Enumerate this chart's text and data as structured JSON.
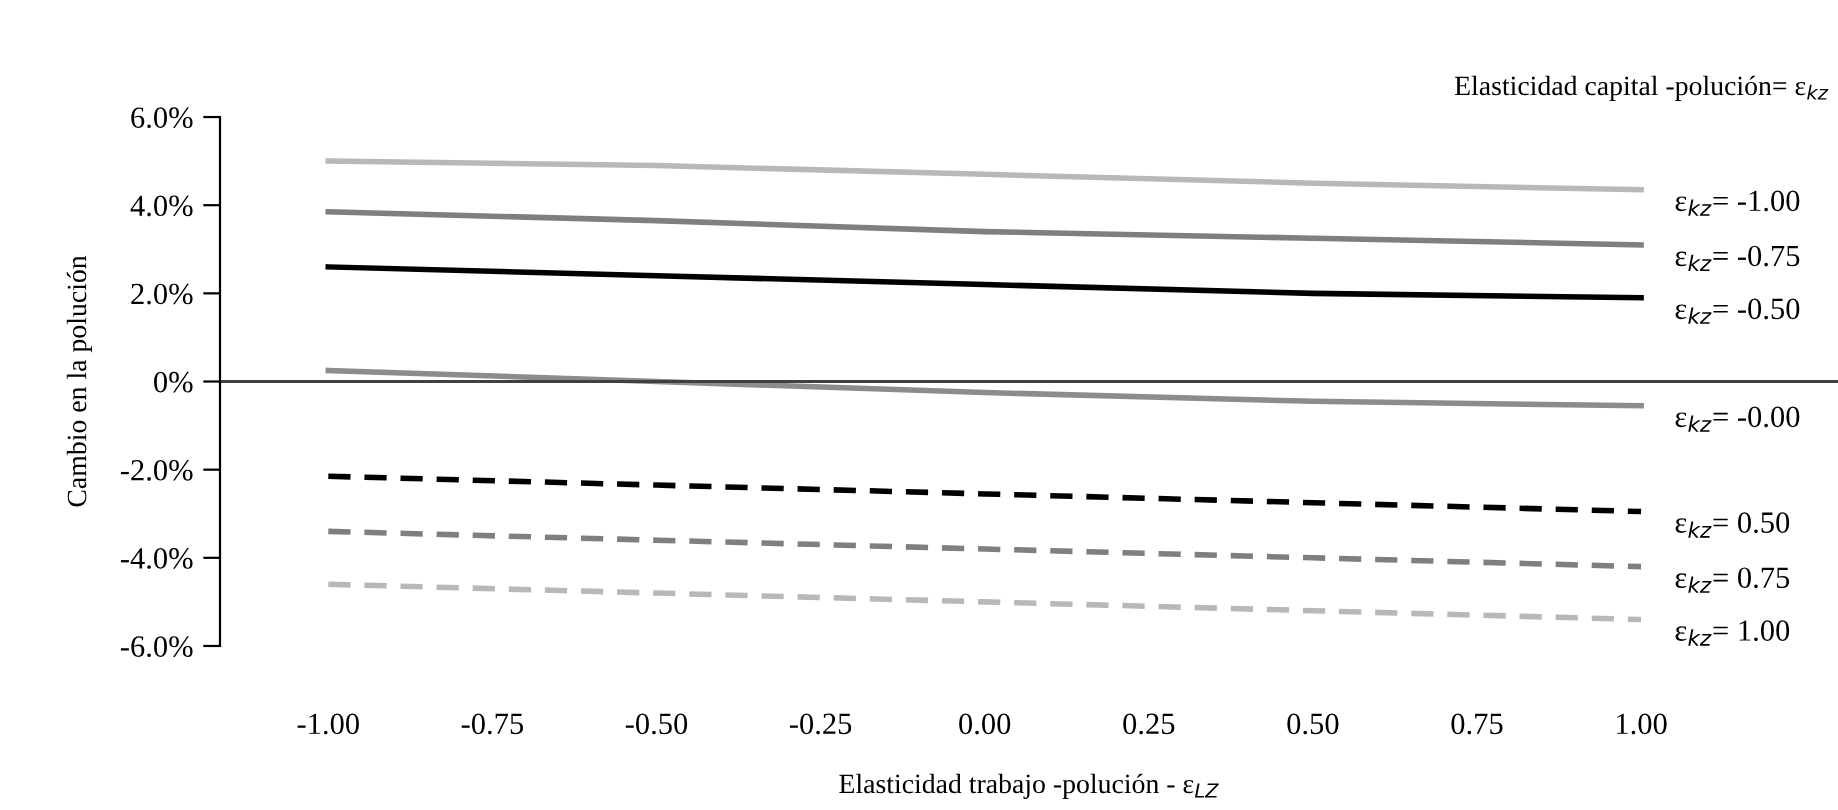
{
  "chart_data": {
    "type": "line",
    "xlabel": "Elasticidad trabajo -polución - ε$_{LZ}$",
    "ylabel": "Cambio en la polución",
    "annotations": [
      "Elasticidad capital -polución= ε$_{kz}$"
    ],
    "x": [
      -1.0,
      -0.5,
      0.0,
      0.5,
      1.0
    ],
    "xlim": [
      -1.165,
      1.3
    ],
    "xticks": [
      {
        "value": -1.0,
        "label": "-1.00"
      },
      {
        "value": -0.75,
        "label": "-0.75"
      },
      {
        "value": -0.5,
        "label": "-0.50"
      },
      {
        "value": -0.25,
        "label": "-0.25"
      },
      {
        "value": 0.0,
        "label": "0.00"
      },
      {
        "value": 0.25,
        "label": "0.25"
      },
      {
        "value": 0.5,
        "label": "0.50"
      },
      {
        "value": 0.75,
        "label": "0.75"
      },
      {
        "value": 1.0,
        "label": "1.00"
      }
    ],
    "ylim": [
      -6,
      6
    ],
    "yticks": [
      {
        "value": 6,
        "label": "6.0%"
      },
      {
        "value": 4,
        "label": "4.0%"
      },
      {
        "value": 2,
        "label": "2.0%"
      },
      {
        "value": 0,
        "label": "0%"
      },
      {
        "value": -2,
        "label": "-2.0%"
      },
      {
        "value": -4,
        "label": "-4.0%"
      },
      {
        "value": -6,
        "label": "-6.0%"
      }
    ],
    "ref_lines": [
      {
        "axis": "y",
        "value": 0,
        "color": "#404040"
      }
    ],
    "grid": false,
    "legend": false,
    "marker": "none",
    "series": [
      {
        "name": "ε$_{kz}$= -1.00",
        "color": "#b8b8b8",
        "line_style": "solid",
        "values": [
          5.0,
          4.9,
          4.7,
          4.5,
          4.35
        ]
      },
      {
        "name": "ε$_{kz}$= -0.75",
        "color": "#7f7f7f",
        "line_style": "solid",
        "values": [
          3.85,
          3.65,
          3.4,
          3.25,
          3.1
        ]
      },
      {
        "name": "ε$_{kz}$= -0.50",
        "color": "#000000",
        "line_style": "solid",
        "values": [
          2.6,
          2.4,
          2.2,
          2.0,
          1.9
        ]
      },
      {
        "name": "ε$_{kz}$= -0.00",
        "color": "#8c8c8c",
        "line_style": "solid",
        "values": [
          0.25,
          0.0,
          -0.25,
          -0.45,
          -0.55
        ]
      },
      {
        "name": "ε$_{kz}$= 0.50",
        "color": "#000000",
        "line_style": "dashed",
        "values": [
          -2.15,
          -2.35,
          -2.55,
          -2.75,
          -2.95
        ]
      },
      {
        "name": "ε$_{kz}$= 0.75",
        "color": "#7f7f7f",
        "line_style": "dashed",
        "values": [
          -3.4,
          -3.6,
          -3.8,
          -4.0,
          -4.2
        ]
      },
      {
        "name": "ε$_{kz}$= 1.00",
        "color": "#b8b8b8",
        "line_style": "dashed",
        "values": [
          -4.6,
          -4.8,
          -5.0,
          -5.2,
          -5.4
        ]
      }
    ]
  }
}
